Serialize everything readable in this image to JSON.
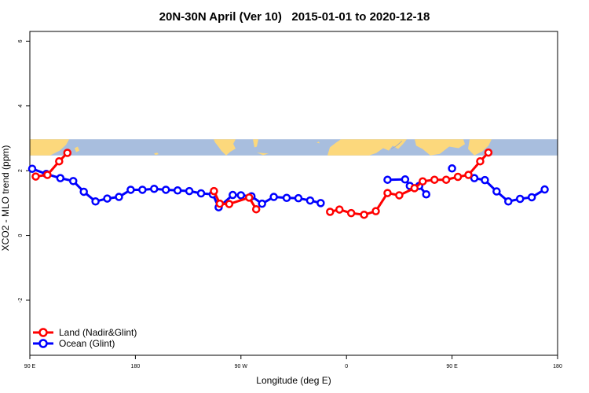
{
  "chart_data": {
    "type": "line",
    "title": "20N-30N April (Ver 10)   2015-01-01 to 2020-12-18",
    "xlabel": "Longitude (deg E)",
    "ylabel": "XCO2 - MLO trend (ppm)",
    "x_ticks": [
      {
        "value": 90,
        "label": "90 E"
      },
      {
        "value": 180,
        "label": "180"
      },
      {
        "value": 270,
        "label": "90 W"
      },
      {
        "value": 360,
        "label": "0"
      },
      {
        "value": 450,
        "label": "90 E"
      },
      {
        "value": 540,
        "label": "180"
      }
    ],
    "y_ticks": [
      -2,
      0,
      2,
      4,
      6
    ],
    "xlim": [
      90,
      540
    ],
    "ylim": [
      -3.7,
      6.3
    ],
    "map_band": {
      "y_range": [
        2.47,
        2.97
      ],
      "ocean_color": "#a8bede",
      "land_color": "#fcd87c"
    },
    "legend": {
      "position": "bottom-left"
    },
    "series": [
      {
        "name": "Land (Nadir&Glint)",
        "color": "#ff0000",
        "segments": [
          [
            [
              95,
              1.82
            ],
            [
              105,
              1.87
            ],
            [
              115,
              2.29
            ],
            [
              122,
              2.55
            ]
          ],
          [
            [
              247,
              1.37
            ],
            [
              252,
              0.98
            ],
            [
              260,
              0.97
            ],
            [
              277,
              1.17
            ],
            [
              283,
              0.81
            ]
          ],
          [
            [
              346,
              0.73
            ],
            [
              354,
              0.8
            ],
            [
              364,
              0.69
            ],
            [
              375,
              0.64
            ],
            [
              385,
              0.75
            ],
            [
              395,
              1.31
            ],
            [
              405,
              1.24
            ],
            [
              418,
              1.46
            ],
            [
              425,
              1.67
            ],
            [
              435,
              1.72
            ],
            [
              445,
              1.72
            ],
            [
              455,
              1.81
            ],
            [
              464,
              1.87
            ],
            [
              474,
              2.29
            ],
            [
              481,
              2.56
            ]
          ]
        ]
      },
      {
        "name": "Ocean (Glint)",
        "color": "#0000ff",
        "segments": [
          [
            [
              92,
              2.06
            ],
            [
              104,
              1.9
            ],
            [
              116,
              1.77
            ],
            [
              127,
              1.68
            ],
            [
              136,
              1.35
            ],
            [
              146,
              1.05
            ],
            [
              156,
              1.14
            ],
            [
              166,
              1.19
            ],
            [
              176,
              1.41
            ],
            [
              186,
              1.41
            ],
            [
              196,
              1.44
            ],
            [
              206,
              1.41
            ],
            [
              216,
              1.39
            ],
            [
              226,
              1.37
            ],
            [
              236,
              1.3
            ],
            [
              246,
              1.27
            ],
            [
              251,
              0.87
            ],
            [
              263,
              1.25
            ],
            [
              270,
              1.24
            ],
            [
              279,
              1.21
            ],
            [
              288,
              0.98
            ],
            [
              298,
              1.19
            ],
            [
              309,
              1.16
            ],
            [
              319,
              1.15
            ],
            [
              329,
              1.08
            ],
            [
              338,
              1.0
            ]
          ],
          [
            [
              395,
              1.72
            ],
            [
              410,
              1.73
            ],
            [
              414,
              1.53
            ],
            [
              422,
              1.53
            ],
            [
              428,
              1.27
            ]
          ],
          [
            [
              450,
              2.07
            ]
          ],
          [
            [
              469,
              1.77
            ],
            [
              478,
              1.71
            ],
            [
              488,
              1.36
            ],
            [
              498,
              1.05
            ],
            [
              508,
              1.13
            ],
            [
              518,
              1.18
            ],
            [
              529,
              1.42
            ]
          ]
        ]
      }
    ]
  }
}
